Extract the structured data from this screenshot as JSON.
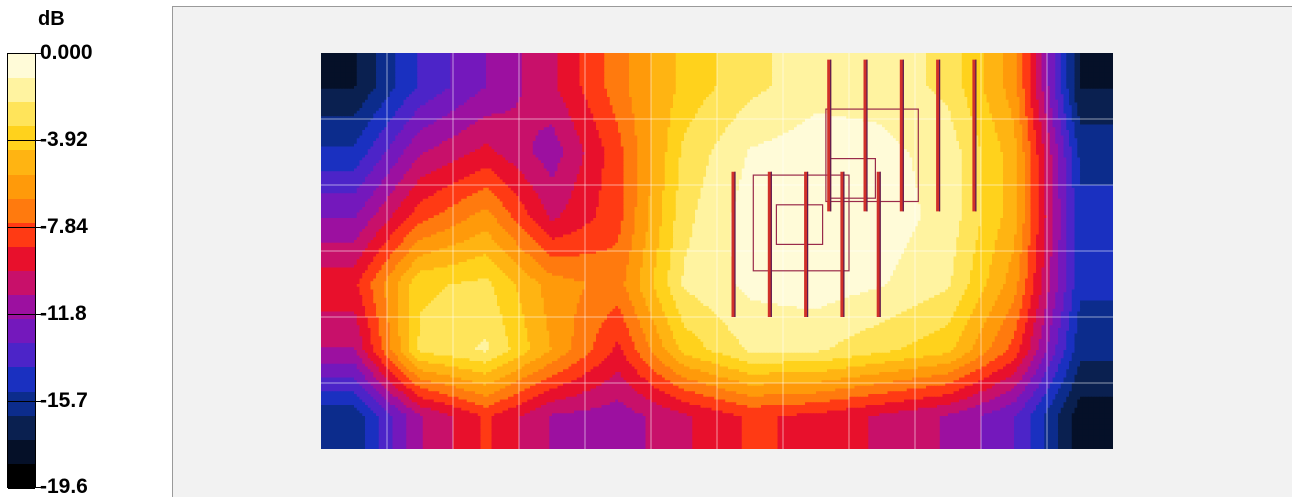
{
  "legend": {
    "unit": "dB",
    "ticks": [
      {
        "label": "0.000",
        "value": 0.0
      },
      {
        "label": "-3.92",
        "value": -3.92
      },
      {
        "label": "-7.84",
        "value": -7.84
      },
      {
        "label": "-11.8",
        "value": -11.8
      },
      {
        "label": "-15.7",
        "value": -15.7
      },
      {
        "label": "-19.6",
        "value": -19.6
      }
    ],
    "colors": [
      "#fffbd8",
      "#fff3a0",
      "#ffe45a",
      "#ffd21c",
      "#ffb412",
      "#ff9a0a",
      "#ff7a0e",
      "#ff3a14",
      "#e8102c",
      "#c8106a",
      "#9c10a0",
      "#7418bc",
      "#4c24c8",
      "#1a30c0",
      "#0c2c8c",
      "#0a2050",
      "#051028",
      "#000000"
    ]
  },
  "chart_data": {
    "type": "heatmap",
    "unit": "dB",
    "zlim": [
      -19.6,
      0.0
    ],
    "grid": true,
    "legend_position": "left",
    "nx": 12,
    "ny": 6,
    "values": [
      [
        -17.5,
        -14.0,
        -12.0,
        -10.0,
        -7.0,
        -4.0,
        -2.5,
        -1.5,
        -1.5,
        -2.5,
        -6.0,
        -17.5
      ],
      [
        -15.0,
        -11.0,
        -9.5,
        -11.5,
        -8.0,
        -3.0,
        -1.0,
        -0.5,
        -0.8,
        -1.5,
        -5.0,
        -15.5
      ],
      [
        -12.0,
        -8.0,
        -6.0,
        -10.0,
        -8.0,
        -2.5,
        -0.5,
        -0.2,
        -0.5,
        -1.5,
        -5.0,
        -15.0
      ],
      [
        -9.0,
        -3.5,
        -3.0,
        -6.0,
        -7.0,
        -2.0,
        -0.8,
        -0.5,
        -1.0,
        -2.0,
        -6.0,
        -15.0
      ],
      [
        -11.0,
        -3.0,
        -2.0,
        -5.5,
        -9.0,
        -4.0,
        -2.0,
        -2.0,
        -3.0,
        -4.0,
        -8.0,
        -16.0
      ],
      [
        -16.0,
        -11.0,
        -8.5,
        -11.0,
        -11.5,
        -10.0,
        -8.5,
        -9.0,
        -10.0,
        -11.0,
        -13.0,
        -18.0
      ]
    ],
    "overlay_bars": [
      {
        "x": 7.7,
        "y0": 0.1,
        "y1": 2.4
      },
      {
        "x": 8.25,
        "y0": 0.1,
        "y1": 2.4
      },
      {
        "x": 8.8,
        "y0": 0.1,
        "y1": 2.4
      },
      {
        "x": 9.35,
        "y0": 0.1,
        "y1": 2.4
      },
      {
        "x": 9.9,
        "y0": 0.1,
        "y1": 2.4
      },
      {
        "x": 6.25,
        "y0": 1.8,
        "y1": 4.0
      },
      {
        "x": 6.8,
        "y0": 1.8,
        "y1": 4.0
      },
      {
        "x": 7.35,
        "y0": 1.8,
        "y1": 4.0
      },
      {
        "x": 7.9,
        "y0": 1.8,
        "y1": 4.0
      },
      {
        "x": 8.45,
        "y0": 1.8,
        "y1": 4.0
      }
    ],
    "outline_rects": [
      {
        "x": 7.65,
        "y": 0.85,
        "w": 1.4,
        "h": 1.4
      },
      {
        "x": 7.7,
        "y": 1.6,
        "w": 0.7,
        "h": 0.6
      },
      {
        "x": 6.55,
        "y": 1.85,
        "w": 1.45,
        "h": 1.45
      },
      {
        "x": 6.9,
        "y": 2.3,
        "w": 0.7,
        "h": 0.6
      }
    ]
  }
}
